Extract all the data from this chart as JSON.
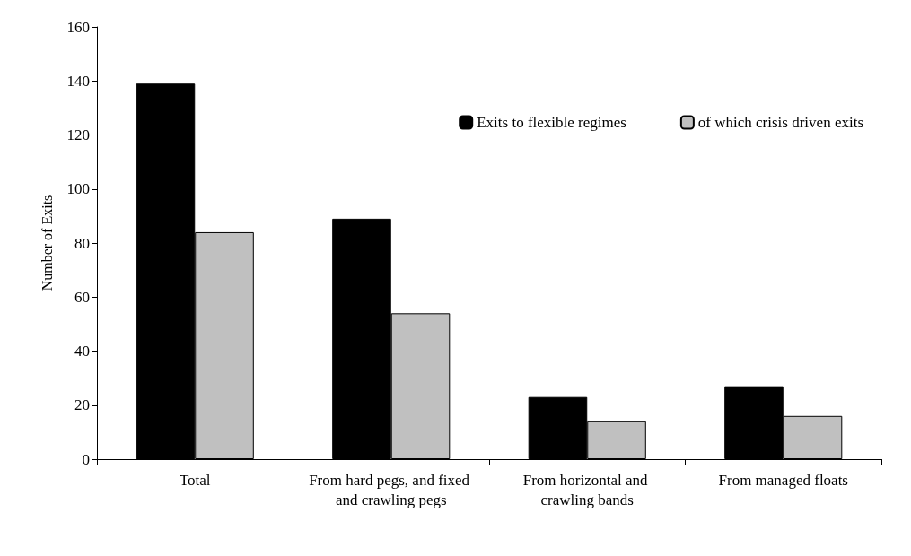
{
  "chart_data": {
    "type": "bar",
    "ylabel": "Number of Exits",
    "categories": [
      "Total",
      "From hard pegs, and fixed and crawling pegs",
      "From horizontal and crawling bands",
      "From managed floats"
    ],
    "series": [
      {
        "name": "Exits to flexible regimes",
        "color": "#000000",
        "values": [
          139,
          89,
          23,
          27
        ]
      },
      {
        "name": "of which crisis driven exits",
        "color": "#c0c0c0",
        "values": [
          84,
          54,
          14,
          16
        ]
      }
    ],
    "ylim": [
      0,
      160
    ],
    "yticks": [
      0,
      20,
      40,
      60,
      80,
      100,
      120,
      140,
      160
    ],
    "grid": false,
    "legend": "top right"
  }
}
